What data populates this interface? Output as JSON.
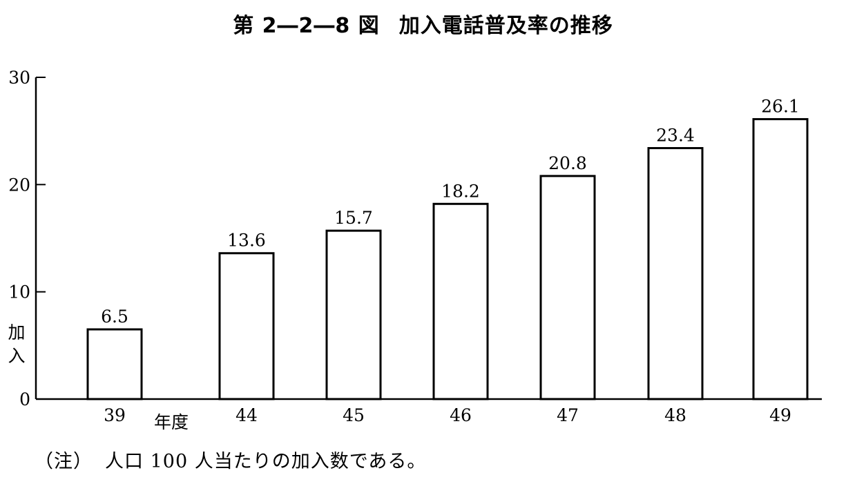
{
  "figure": {
    "number": "第 2―2―8 図",
    "title": "加入電話普及率の推移"
  },
  "note": {
    "marker": "（注）",
    "text": "人口 100 人当たりの加入数である。"
  },
  "chart_data": {
    "type": "bar",
    "categories": [
      "39",
      "44",
      "45",
      "46",
      "47",
      "48",
      "49"
    ],
    "values": [
      6.5,
      13.6,
      15.7,
      18.2,
      20.8,
      23.4,
      26.1
    ],
    "data_labels": [
      "6.5",
      "13.6",
      "15.7",
      "18.2",
      "20.8",
      "23.4",
      "26.1"
    ],
    "ylabel": "加入",
    "xlabel": "年度",
    "ylim": [
      0,
      30
    ],
    "yticks": [
      0,
      10,
      20,
      30
    ],
    "grid": false
  }
}
